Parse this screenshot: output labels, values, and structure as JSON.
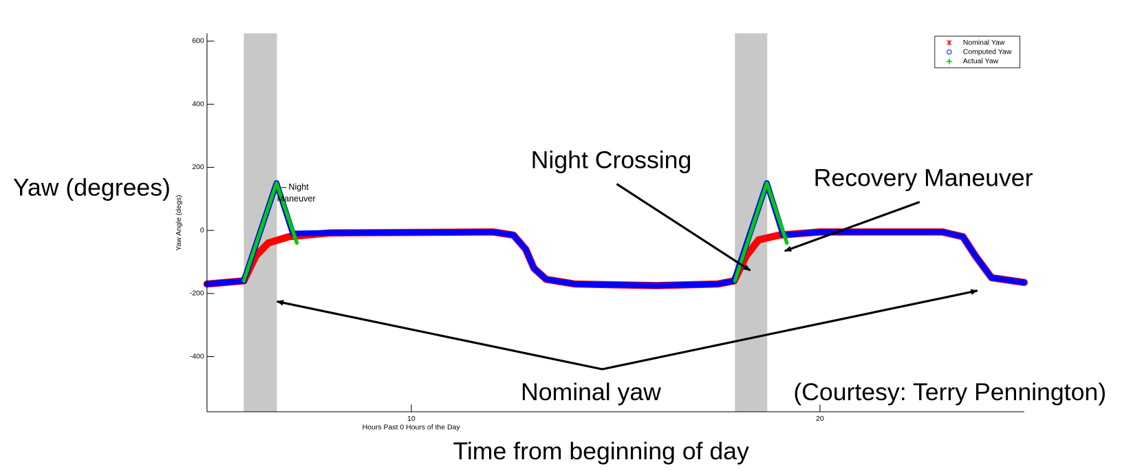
{
  "chart_data": {
    "type": "line",
    "y_label": "Yaw Angle (degs)",
    "x_label": "Hours Past 0 Hours of the Day",
    "xlim": [
      5,
      25
    ],
    "xticks": [
      10,
      20
    ],
    "ylim": [
      -575,
      625
    ],
    "yticks": [
      -400,
      -200,
      0,
      200,
      400,
      600
    ],
    "shaded_regions": [
      [
        5.9,
        6.71
      ],
      [
        17.92,
        18.71
      ]
    ],
    "legend_position": "upper right",
    "series": [
      {
        "name": "Nominal Yaw",
        "color": "#ff0000",
        "marker": "*",
        "x": [
          5,
          5.9,
          6.2,
          6.5,
          7,
          8,
          12,
          12.5,
          12.8,
          13,
          13.3,
          14,
          16,
          17.5,
          17.9,
          18.2,
          18.5,
          19,
          20,
          23,
          23.5,
          23.8,
          24.2,
          25
        ],
        "values": [
          -170,
          -160,
          -80,
          -40,
          -20,
          -8,
          -5,
          -15,
          -60,
          -120,
          -155,
          -170,
          -175,
          -170,
          -160,
          -80,
          -30,
          -15,
          -5,
          -5,
          -20,
          -80,
          -150,
          -165
        ]
      },
      {
        "name": "Computed Yaw",
        "color": "#0000ff",
        "marker": "o",
        "x": [
          5,
          5.9,
          6.7,
          7.1,
          8,
          12,
          12.5,
          12.8,
          13,
          13.3,
          14,
          16,
          17.5,
          17.9,
          18.7,
          19.1,
          20,
          23,
          23.5,
          23.8,
          24.2,
          25
        ],
        "values": [
          -170,
          -160,
          150,
          -10,
          -8,
          -5,
          -15,
          -60,
          -120,
          -155,
          -170,
          -175,
          -170,
          -160,
          150,
          -15,
          -5,
          -5,
          -20,
          -80,
          -150,
          -165
        ]
      },
      {
        "name": "Actual Yaw",
        "color": "#00cc00",
        "marker": "+",
        "x": [
          5.9,
          6.7,
          7.2,
          null,
          17.92,
          18.7,
          19.19
        ],
        "values": [
          -160,
          150,
          -40,
          null,
          -160,
          150,
          -40
        ]
      }
    ],
    "annotations": {
      "night_maneuver": [
        "Night",
        "Maneuver"
      ],
      "night_crossing": "Night Crossing",
      "recovery_maneuver": "Recovery Maneuver",
      "nominal_yaw": "Nominal yaw",
      "courtesy": "(Courtesy: Terry Pennington)",
      "yaw_degrees": "Yaw (degrees)",
      "time_label": "Time from beginning of day"
    }
  }
}
